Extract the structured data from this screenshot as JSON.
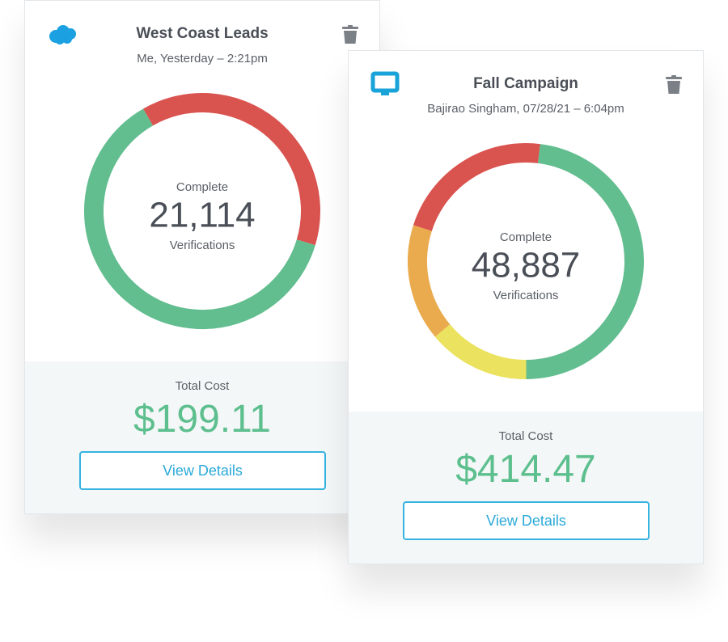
{
  "cards": [
    {
      "title": "West Coast Leads",
      "subtitle": "Me, Yesterday – 2:21pm",
      "donut": {
        "label_top": "Complete",
        "count": "21,114",
        "label_bottom": "Verifications",
        "segments": [
          {
            "color": "#d9534f",
            "value": 38
          },
          {
            "color": "#62bd8f",
            "value": 62
          }
        ]
      },
      "cost_label": "Total Cost",
      "cost": "$199.11",
      "button": "View Details"
    },
    {
      "title": "Fall Campaign",
      "subtitle": "Bajirao Singham, 07/28/21 – 6:04pm",
      "donut": {
        "label_top": "Complete",
        "count": "48,887",
        "label_bottom": "Verifications",
        "segments": [
          {
            "color": "#62bd8f",
            "value": 48
          },
          {
            "color": "#ebe25f",
            "value": 14
          },
          {
            "color": "#eaab4e",
            "value": 16
          },
          {
            "color": "#d9534f",
            "value": 22
          }
        ]
      },
      "cost_label": "Total Cost",
      "cost": "$414.47",
      "button": "View Details"
    }
  ]
}
